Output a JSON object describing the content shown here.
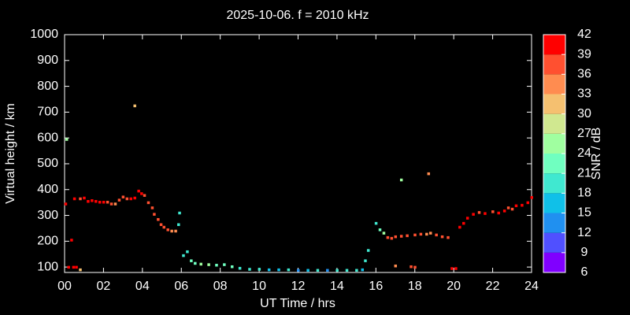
{
  "chart_data": {
    "type": "scatter",
    "title": "2025-10-06. f = 2010 kHz",
    "x_label": "UT Time / hrs",
    "y_label": "Virtual height / km",
    "xlim": [
      0,
      24
    ],
    "xticks": [
      {
        "value": 0,
        "label": "00"
      },
      {
        "value": 2,
        "label": "02"
      },
      {
        "value": 4,
        "label": "04"
      },
      {
        "value": 6,
        "label": "06"
      },
      {
        "value": 8,
        "label": "08"
      },
      {
        "value": 10,
        "label": "10"
      },
      {
        "value": 12,
        "label": "12"
      },
      {
        "value": 14,
        "label": "14"
      },
      {
        "value": 16,
        "label": "16"
      },
      {
        "value": 18,
        "label": "18"
      },
      {
        "value": 20,
        "label": "20"
      },
      {
        "value": 22,
        "label": "22"
      },
      {
        "value": 24,
        "label": "24"
      }
    ],
    "ylim": [
      79,
      1000
    ],
    "yticks": [
      100,
      200,
      300,
      400,
      500,
      600,
      700,
      800,
      900,
      1000
    ],
    "colorbar": {
      "label": "SNR / dB",
      "lim": [
        6,
        42
      ],
      "ticks": [
        6,
        9,
        12,
        15,
        18,
        21,
        24,
        27,
        30,
        33,
        36,
        39,
        42
      ],
      "colors": [
        "#8000ff",
        "#5050ff",
        "#2090f0",
        "#10c0e8",
        "#40e8d0",
        "#70ffc0",
        "#a0ffa0",
        "#d0e890",
        "#f5c070",
        "#ff8c50",
        "#ff5030",
        "#ff0000"
      ]
    },
    "x": [
      0.05,
      0.1,
      0.2,
      0.35,
      0.45,
      0.6,
      0.8,
      0.5,
      0.8,
      1.0,
      1.2,
      1.4,
      1.6,
      1.8,
      2.0,
      2.2,
      2.4,
      2.6,
      2.8,
      3.0,
      3.2,
      3.4,
      3.6,
      3.8,
      3.95,
      4.1,
      4.3,
      4.5,
      4.6,
      4.8,
      4.95,
      5.1,
      5.3,
      5.5,
      5.7,
      3.6,
      5.85,
      5.9,
      6.1,
      6.3,
      6.5,
      6.7,
      7.0,
      7.4,
      7.8,
      8.2,
      8.6,
      9.0,
      9.5,
      10.0,
      10.5,
      11.0,
      11.5,
      12.0,
      12.5,
      13.0,
      13.5,
      14.0,
      14.5,
      15.0,
      15.3,
      15.45,
      15.6,
      16.0,
      16.2,
      16.4,
      16.6,
      16.8,
      17.0,
      17.3,
      17.6,
      18.0,
      18.3,
      18.6,
      18.8,
      19.1,
      19.4,
      19.7,
      17.3,
      18.7,
      17.0,
      17.8,
      18.0,
      19.9,
      20.1,
      20.3,
      20.5,
      20.7,
      21.0,
      21.3,
      21.6,
      22.0,
      22.3,
      22.6,
      22.8,
      23.0,
      23.2,
      23.5,
      23.8,
      24.0
    ],
    "y": [
      345,
      595,
      100,
      205,
      100,
      100,
      90,
      365,
      365,
      368,
      355,
      358,
      355,
      352,
      352,
      352,
      345,
      345,
      360,
      372,
      365,
      365,
      368,
      395,
      385,
      378,
      350,
      330,
      305,
      285,
      265,
      255,
      245,
      240,
      240,
      725,
      265,
      310,
      145,
      160,
      125,
      115,
      112,
      110,
      108,
      110,
      102,
      96,
      92,
      92,
      90,
      90,
      90,
      88,
      88,
      88,
      88,
      88,
      88,
      88,
      90,
      125,
      165,
      270,
      245,
      232,
      215,
      212,
      218,
      220,
      222,
      225,
      228,
      228,
      232,
      225,
      218,
      215,
      438,
      462,
      105,
      102,
      100,
      95,
      95,
      255,
      270,
      290,
      305,
      312,
      308,
      315,
      310,
      318,
      330,
      325,
      338,
      340,
      350,
      370
    ],
    "snr": [
      40,
      25,
      40,
      40,
      40,
      40,
      30,
      40,
      38,
      40,
      40,
      40,
      40,
      40,
      40,
      38,
      36,
      35,
      38,
      38,
      38,
      40,
      40,
      40,
      40,
      38,
      38,
      38,
      37,
      38,
      38,
      36,
      36,
      34,
      33,
      31,
      20,
      19,
      19,
      20,
      22,
      22,
      24,
      24,
      23,
      22,
      21,
      20,
      19,
      18,
      15,
      16,
      20,
      14,
      16,
      18,
      14,
      18,
      20,
      19,
      17,
      18,
      18,
      19,
      22,
      24,
      38,
      38,
      38,
      38,
      38,
      37,
      36,
      35,
      33,
      36,
      38,
      38,
      25,
      33,
      35,
      37,
      38,
      40,
      40,
      40,
      40,
      40,
      40,
      38,
      40,
      38,
      39,
      39,
      38,
      36,
      40,
      40,
      40,
      40
    ]
  }
}
